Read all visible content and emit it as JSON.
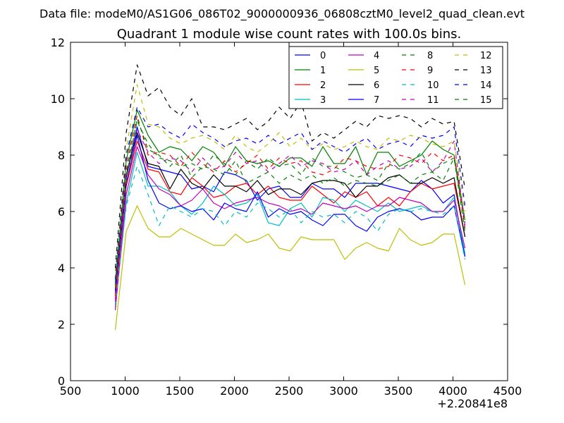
{
  "chart_data": {
    "type": "line",
    "suptitle": "Data file: modeM0/AS1G06_086T02_9000000936_06808cztM0_level2_quad_clean.evt",
    "title": "Quadrant 1 module wise count rates with 100.0s bins.",
    "xlabel": "",
    "ylabel": "",
    "x_offset_label": "+2.20841e8",
    "xlim": [
      500,
      4500
    ],
    "ylim": [
      0,
      12
    ],
    "xticks": [
      500,
      1000,
      1500,
      2000,
      2500,
      3000,
      3500,
      4000,
      4500
    ],
    "yticks": [
      0,
      2,
      4,
      6,
      8,
      10,
      12
    ],
    "grid": false,
    "legend": {
      "placement": "top-right",
      "columns": 4
    },
    "x": [
      910,
      1010,
      1110,
      1210,
      1310,
      1410,
      1510,
      1610,
      1710,
      1810,
      1910,
      2010,
      2110,
      2210,
      2310,
      2410,
      2510,
      2610,
      2710,
      2810,
      2910,
      3010,
      3110,
      3210,
      3310,
      3410,
      3510,
      3610,
      3710,
      3810,
      3910,
      4010,
      4110
    ],
    "series": [
      {
        "name": "0",
        "color": "#0000ff",
        "dash": "solid",
        "values": [
          3.4,
          7.2,
          9.0,
          7.6,
          7.5,
          7.4,
          7.3,
          6.8,
          6.9,
          6.7,
          7.4,
          7.3,
          7.1,
          6.4,
          6.8,
          6.9,
          6.5,
          6.5,
          7.0,
          6.8,
          6.8,
          6.5,
          7.0,
          7.0,
          7.0,
          6.9,
          6.8,
          6.7,
          7.1,
          6.8,
          6.3,
          6.6,
          4.4
        ]
      },
      {
        "name": "1",
        "color": "#008000",
        "dash": "solid",
        "values": [
          3.5,
          7.8,
          9.6,
          8.7,
          8.1,
          8.3,
          8.2,
          7.8,
          8.3,
          8.1,
          7.6,
          8.3,
          7.8,
          7.7,
          7.8,
          7.6,
          7.9,
          7.9,
          7.6,
          8.3,
          7.7,
          7.7,
          8.3,
          7.3,
          8.1,
          8.1,
          7.6,
          7.8,
          8.0,
          8.5,
          8.2,
          8.0,
          5.7
        ]
      },
      {
        "name": "2",
        "color": "#ff0000",
        "dash": "solid",
        "values": [
          2.9,
          6.9,
          8.5,
          7.5,
          7.4,
          6.7,
          6.6,
          7.2,
          6.9,
          6.5,
          6.6,
          6.9,
          7.0,
          6.6,
          6.9,
          6.5,
          6.4,
          6.4,
          6.9,
          6.6,
          6.3,
          6.7,
          6.5,
          6.7,
          6.2,
          6.5,
          6.2,
          6.7,
          7.0,
          6.8,
          6.9,
          7.0,
          5.1
        ]
      },
      {
        "name": "3",
        "color": "#00bfbf",
        "dash": "solid",
        "values": [
          2.6,
          6.3,
          8.1,
          6.9,
          6.9,
          6.7,
          6.2,
          5.9,
          6.3,
          6.9,
          6.6,
          6.2,
          6.3,
          6.6,
          5.6,
          5.5,
          6.1,
          6.3,
          5.8,
          6.5,
          6.4,
          6.0,
          6.4,
          6.2,
          6.0,
          6.3,
          6.0,
          6.1,
          6.2,
          6.0,
          6.0,
          6.5,
          4.5
        ]
      },
      {
        "name": "4",
        "color": "#bf00bf",
        "dash": "solid",
        "values": [
          2.5,
          6.6,
          8.3,
          7.3,
          6.8,
          6.6,
          6.2,
          6.4,
          6.8,
          6.3,
          6.1,
          6.3,
          6.4,
          6.5,
          6.3,
          6.2,
          6.0,
          6.1,
          5.9,
          6.3,
          6.2,
          6.1,
          6.2,
          6.0,
          6.2,
          6.2,
          6.5,
          6.4,
          6.3,
          6.0,
          6.0,
          6.4,
          4.7
        ]
      },
      {
        "name": "5",
        "color": "#bfbf00",
        "dash": "solid",
        "values": [
          1.8,
          5.3,
          6.2,
          5.4,
          5.1,
          5.1,
          5.4,
          5.2,
          5.0,
          4.8,
          4.8,
          5.2,
          4.9,
          5.0,
          5.2,
          4.7,
          4.6,
          5.1,
          5.0,
          5.0,
          5.0,
          4.3,
          4.7,
          4.9,
          4.7,
          4.6,
          5.4,
          5.0,
          4.8,
          4.9,
          5.2,
          5.2,
          3.4
        ]
      },
      {
        "name": "6",
        "color": "#000000",
        "dash": "solid",
        "values": [
          3.2,
          7.3,
          8.8,
          7.7,
          7.6,
          6.8,
          7.5,
          7.0,
          6.8,
          7.3,
          6.9,
          6.9,
          6.7,
          7.1,
          6.6,
          6.8,
          6.8,
          6.6,
          7.0,
          7.1,
          7.1,
          7.0,
          6.5,
          6.9,
          6.9,
          7.2,
          7.3,
          7.0,
          7.0,
          7.2,
          7.0,
          7.2,
          5.1
        ]
      },
      {
        "name": "7",
        "color": "#0000ff",
        "dash": "solid",
        "values": [
          3.1,
          7.0,
          8.7,
          7.1,
          6.3,
          6.1,
          6.2,
          6.0,
          6.1,
          5.7,
          6.3,
          6.1,
          6.0,
          6.7,
          5.8,
          6.1,
          5.9,
          6.0,
          5.7,
          5.5,
          5.9,
          5.9,
          5.5,
          5.3,
          5.8,
          6.0,
          6.1,
          6.0,
          5.7,
          5.8,
          5.8,
          6.2,
          4.4
        ]
      },
      {
        "name": "8",
        "color": "#008000",
        "dash": "dashed",
        "values": [
          3.3,
          7.4,
          9.2,
          8.4,
          7.9,
          7.8,
          7.6,
          7.7,
          7.5,
          8.0,
          7.7,
          7.3,
          7.8,
          7.5,
          7.9,
          7.6,
          7.7,
          7.3,
          7.9,
          7.6,
          7.6,
          7.4,
          7.2,
          7.3,
          7.1,
          7.7,
          7.5,
          7.7,
          8.1,
          7.4,
          7.7,
          7.9,
          5.6
        ]
      },
      {
        "name": "9",
        "color": "#ff0000",
        "dash": "dashed",
        "values": [
          3.0,
          7.6,
          9.4,
          8.0,
          8.1,
          8.0,
          7.6,
          8.1,
          7.7,
          7.4,
          7.8,
          7.4,
          7.7,
          8.0,
          7.5,
          7.9,
          7.7,
          7.8,
          7.4,
          7.3,
          7.5,
          7.9,
          7.8,
          7.6,
          7.5,
          7.6,
          8.0,
          7.9,
          7.7,
          8.1,
          7.8,
          8.0,
          5.4
        ]
      },
      {
        "name": "10",
        "color": "#00bfbf",
        "dash": "dashed",
        "values": [
          2.7,
          6.2,
          7.6,
          6.6,
          5.5,
          6.2,
          6.0,
          5.8,
          6.1,
          6.0,
          5.5,
          6.0,
          5.8,
          6.3,
          6.1,
          5.8,
          6.1,
          5.6,
          6.0,
          5.8,
          5.9,
          5.6,
          6.0,
          5.8,
          5.3,
          5.9,
          6.1,
          6.0,
          6.1,
          6.0,
          5.9,
          6.2,
          4.3
        ]
      },
      {
        "name": "11",
        "color": "#bf00bf",
        "dash": "dashed",
        "values": [
          2.8,
          7.0,
          8.9,
          8.1,
          7.7,
          7.9,
          7.8,
          7.4,
          7.9,
          7.5,
          7.6,
          8.1,
          7.7,
          7.8,
          7.4,
          7.7,
          8.0,
          7.6,
          7.8,
          7.7,
          7.4,
          7.5,
          7.8,
          7.3,
          7.6,
          7.8,
          7.5,
          7.6,
          7.9,
          7.4,
          7.8,
          8.5,
          5.5
        ]
      },
      {
        "name": "12",
        "color": "#bfbf00",
        "dash": "dashed",
        "values": [
          3.9,
          8.2,
          10.5,
          9.1,
          9.0,
          8.6,
          8.4,
          8.6,
          8.7,
          8.5,
          8.2,
          8.7,
          8.3,
          8.1,
          8.4,
          8.8,
          8.3,
          8.6,
          8.2,
          8.4,
          8.2,
          8.3,
          8.5,
          8.3,
          8.2,
          8.6,
          8.5,
          8.7,
          8.6,
          8.4,
          8.3,
          8.5,
          6.0
        ]
      },
      {
        "name": "13",
        "color": "#000000",
        "dash": "dashed",
        "values": [
          4.0,
          8.8,
          11.2,
          10.1,
          10.4,
          9.7,
          9.4,
          10.0,
          9.0,
          9.0,
          8.9,
          9.1,
          9.3,
          8.9,
          9.2,
          9.7,
          9.3,
          9.9,
          8.5,
          8.8,
          8.6,
          8.9,
          9.2,
          9.0,
          9.4,
          9.3,
          9.4,
          9.3,
          9.0,
          9.3,
          9.1,
          9.2,
          6.8
        ]
      },
      {
        "name": "14",
        "color": "#0000ff",
        "dash": "dashed",
        "values": [
          3.6,
          8.0,
          9.7,
          9.0,
          9.1,
          8.8,
          8.6,
          9.1,
          8.8,
          8.6,
          8.3,
          8.5,
          8.6,
          8.4,
          8.7,
          8.4,
          8.6,
          8.8,
          8.2,
          8.5,
          8.3,
          8.1,
          8.4,
          8.6,
          8.2,
          8.4,
          8.5,
          8.3,
          8.7,
          8.6,
          8.7,
          9.0,
          6.2
        ]
      },
      {
        "name": "15",
        "color": "#008000",
        "dash": "dashed",
        "values": [
          3.4,
          7.2,
          9.3,
          8.2,
          8.0,
          7.6,
          8.0,
          7.2,
          7.6,
          7.5,
          7.3,
          7.8,
          7.0,
          7.2,
          7.4,
          7.0,
          7.3,
          7.1,
          7.3,
          7.0,
          7.2,
          6.9,
          7.1,
          7.0,
          6.9,
          7.1,
          7.3,
          7.0,
          7.3,
          7.4,
          7.1,
          7.9,
          5.3
        ]
      }
    ]
  }
}
